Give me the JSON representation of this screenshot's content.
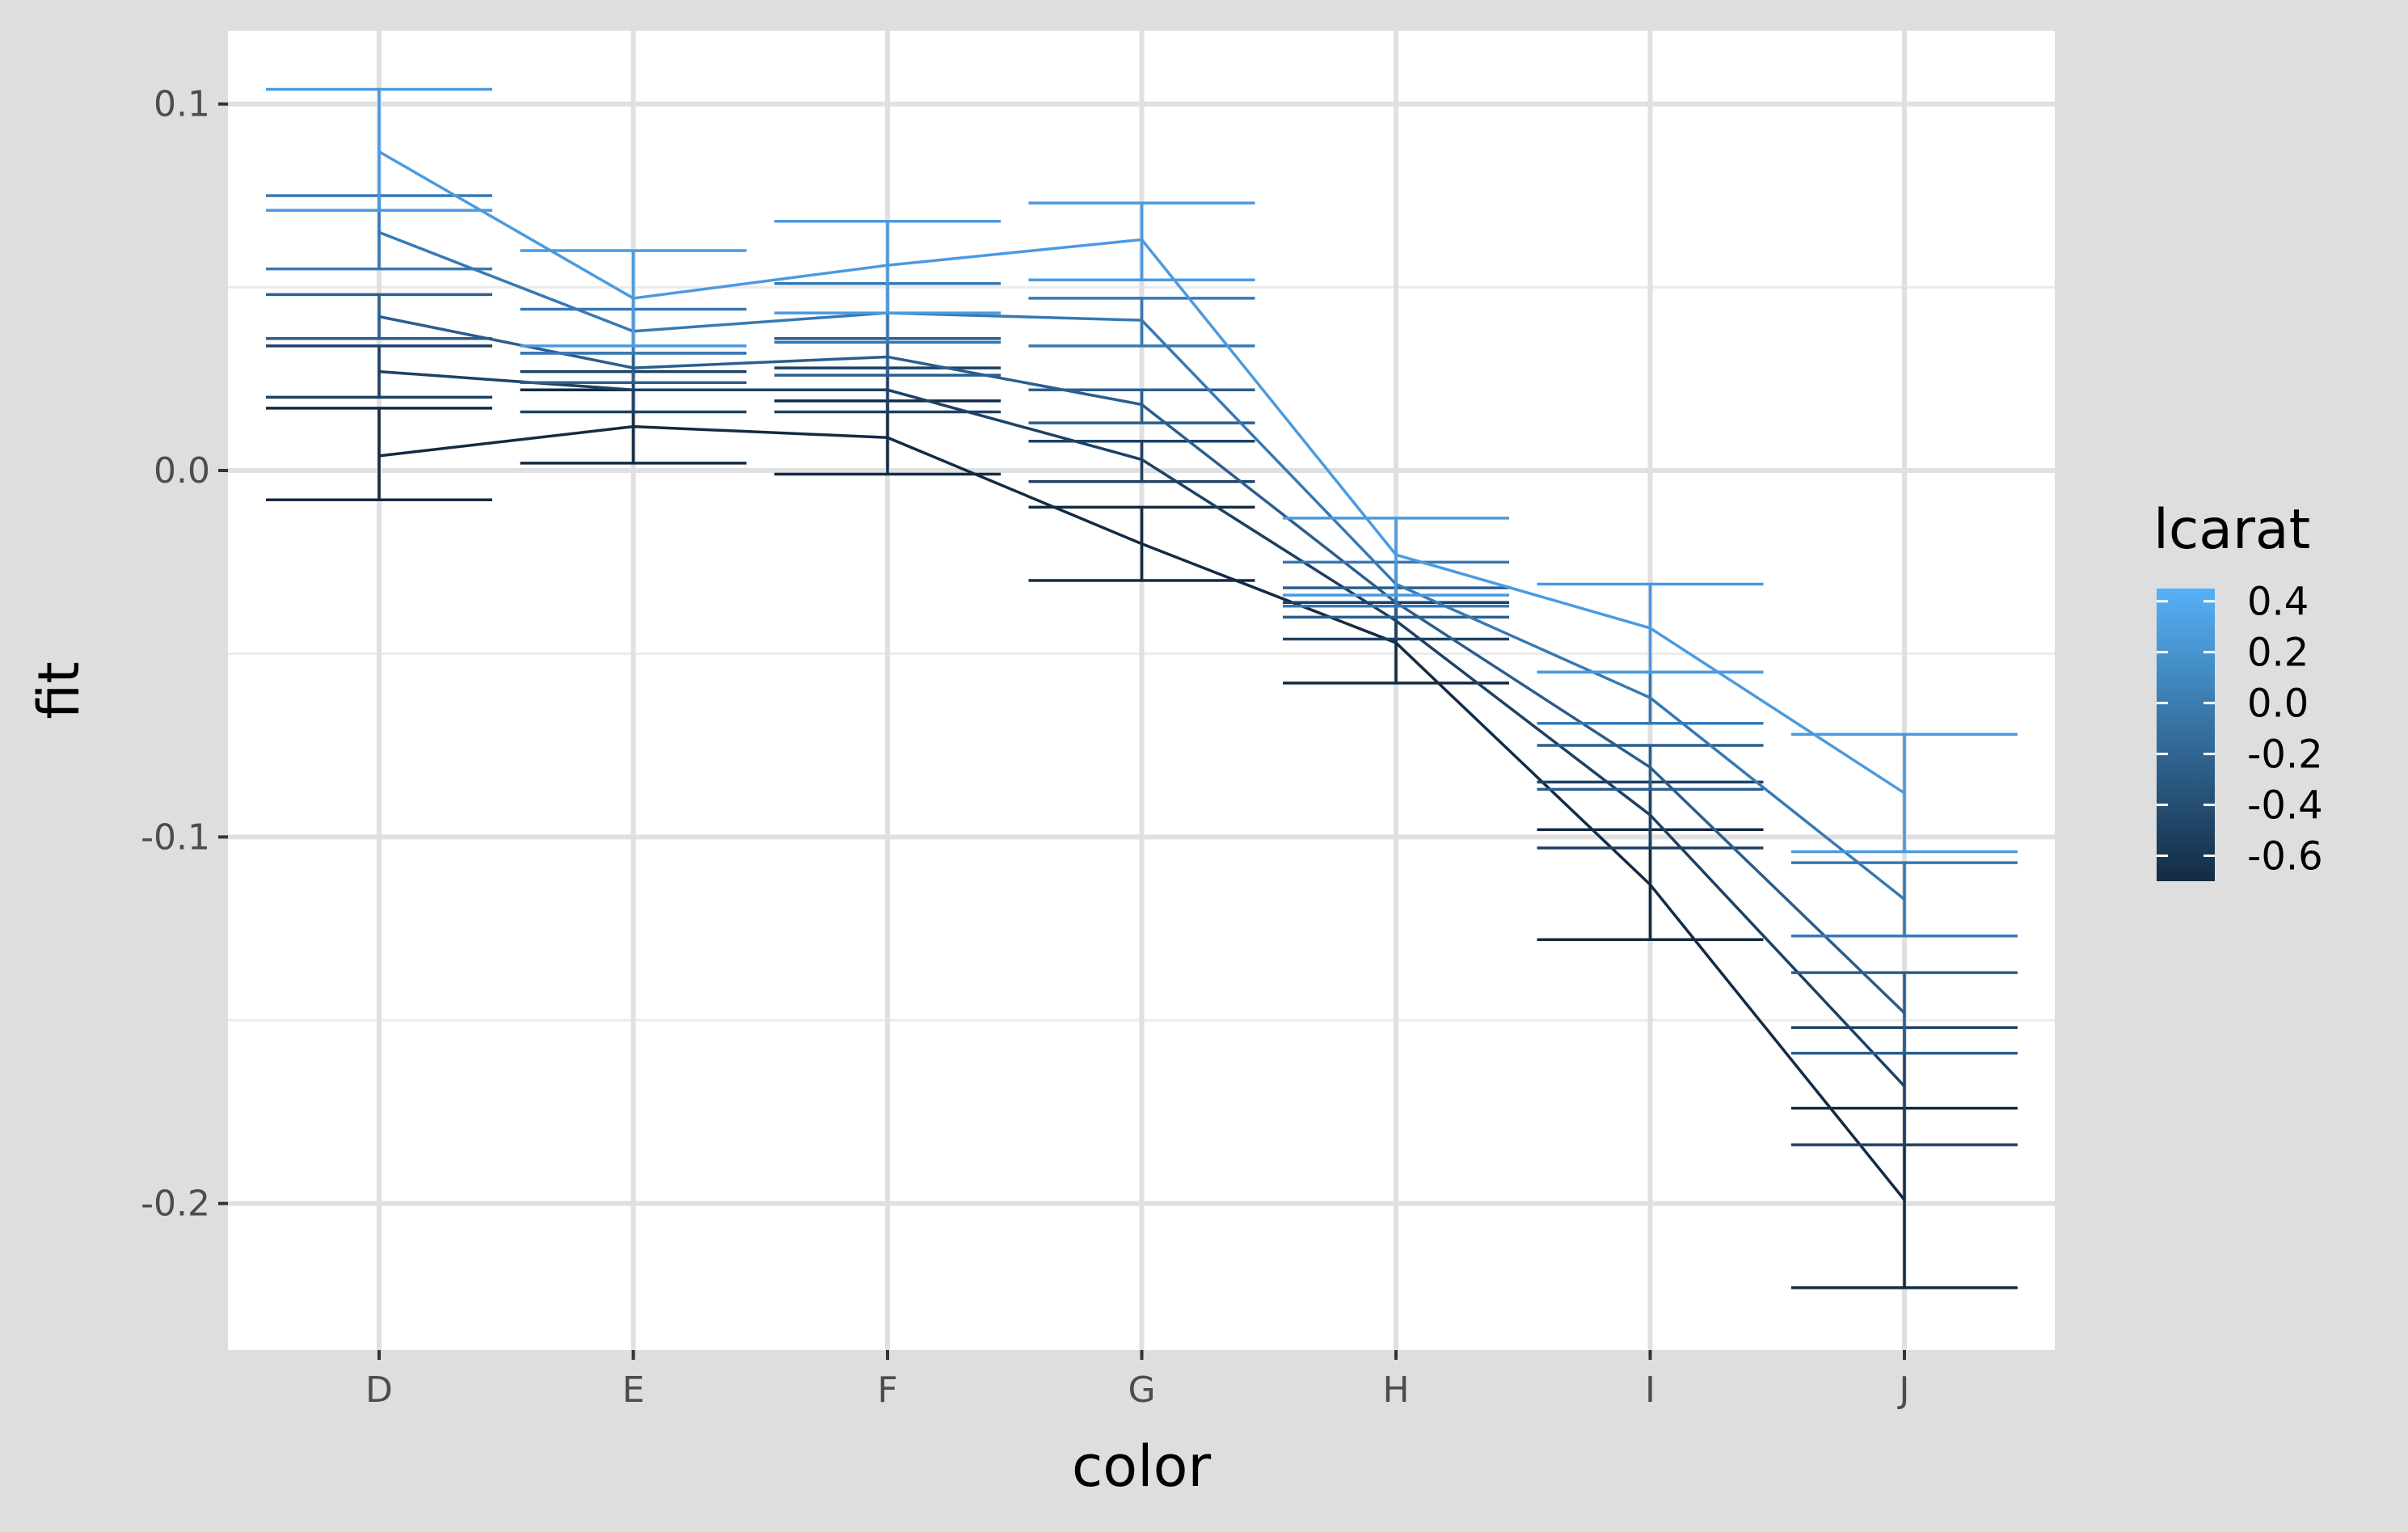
{
  "chart_data": {
    "type": "line",
    "xlabel": "color",
    "ylabel": "fit",
    "x": [
      "D",
      "E",
      "F",
      "G",
      "H",
      "I",
      "J"
    ],
    "ylim": [
      -0.24,
      0.12
    ],
    "yticks": [
      0.1,
      0.0,
      -0.1,
      -0.2
    ],
    "ytick_labels": [
      "0.1",
      "0.0",
      "-0.1",
      "-0.2"
    ],
    "grid": true,
    "error_bars": true,
    "legend": {
      "title": "lcarat",
      "type": "colorbar",
      "position": "right",
      "range": [
        -0.7,
        0.45
      ],
      "ticks": [
        0.4,
        0.2,
        0.0,
        -0.2,
        -0.4,
        -0.6
      ],
      "tick_labels": [
        "0.4",
        "0.2",
        "0.0",
        "-0.2",
        "-0.4",
        "-0.6"
      ],
      "low_color": "#132B43",
      "high_color": "#56B1F7"
    },
    "series": [
      {
        "lcarat": -0.7,
        "color": "#132B43",
        "values": [
          0.004,
          0.012,
          0.009,
          -0.02,
          -0.047,
          -0.113,
          -0.199
        ],
        "lower": [
          -0.008,
          0.002,
          -0.001,
          -0.03,
          -0.058,
          -0.128,
          -0.223
        ],
        "upper": [
          0.017,
          0.022,
          0.019,
          -0.01,
          -0.036,
          -0.098,
          -0.174
        ]
      },
      {
        "lcarat": -0.35,
        "color": "#1D4164",
        "values": [
          0.027,
          0.022,
          0.022,
          0.003,
          -0.041,
          -0.094,
          -0.168
        ],
        "lower": [
          0.02,
          0.016,
          0.016,
          -0.003,
          -0.046,
          -0.103,
          -0.184
        ],
        "upper": [
          0.034,
          0.027,
          0.028,
          0.008,
          -0.036,
          -0.085,
          -0.152
        ]
      },
      {
        "lcarat": 0.0,
        "color": "#2B5E8E",
        "values": [
          0.042,
          0.028,
          0.031,
          0.018,
          -0.036,
          -0.081,
          -0.148
        ],
        "lower": [
          0.036,
          0.024,
          0.026,
          0.013,
          -0.04,
          -0.087,
          -0.159
        ],
        "upper": [
          0.048,
          0.032,
          0.036,
          0.022,
          -0.032,
          -0.075,
          -0.137
        ]
      },
      {
        "lcarat": 0.2,
        "color": "#3679B5",
        "values": [
          0.065,
          0.038,
          0.043,
          0.041,
          -0.031,
          -0.062,
          -0.117
        ],
        "lower": [
          0.055,
          0.032,
          0.035,
          0.034,
          -0.037,
          -0.069,
          -0.127
        ],
        "upper": [
          0.075,
          0.044,
          0.051,
          0.047,
          -0.025,
          -0.055,
          -0.107
        ]
      },
      {
        "lcarat": 0.45,
        "color": "#4A9AE0",
        "values": [
          0.087,
          0.047,
          0.056,
          0.063,
          -0.023,
          -0.043,
          -0.088
        ],
        "lower": [
          0.071,
          0.034,
          0.043,
          0.052,
          -0.034,
          -0.055,
          -0.104
        ],
        "upper": [
          0.104,
          0.06,
          0.068,
          0.073,
          -0.013,
          -0.031,
          -0.072
        ]
      }
    ]
  }
}
